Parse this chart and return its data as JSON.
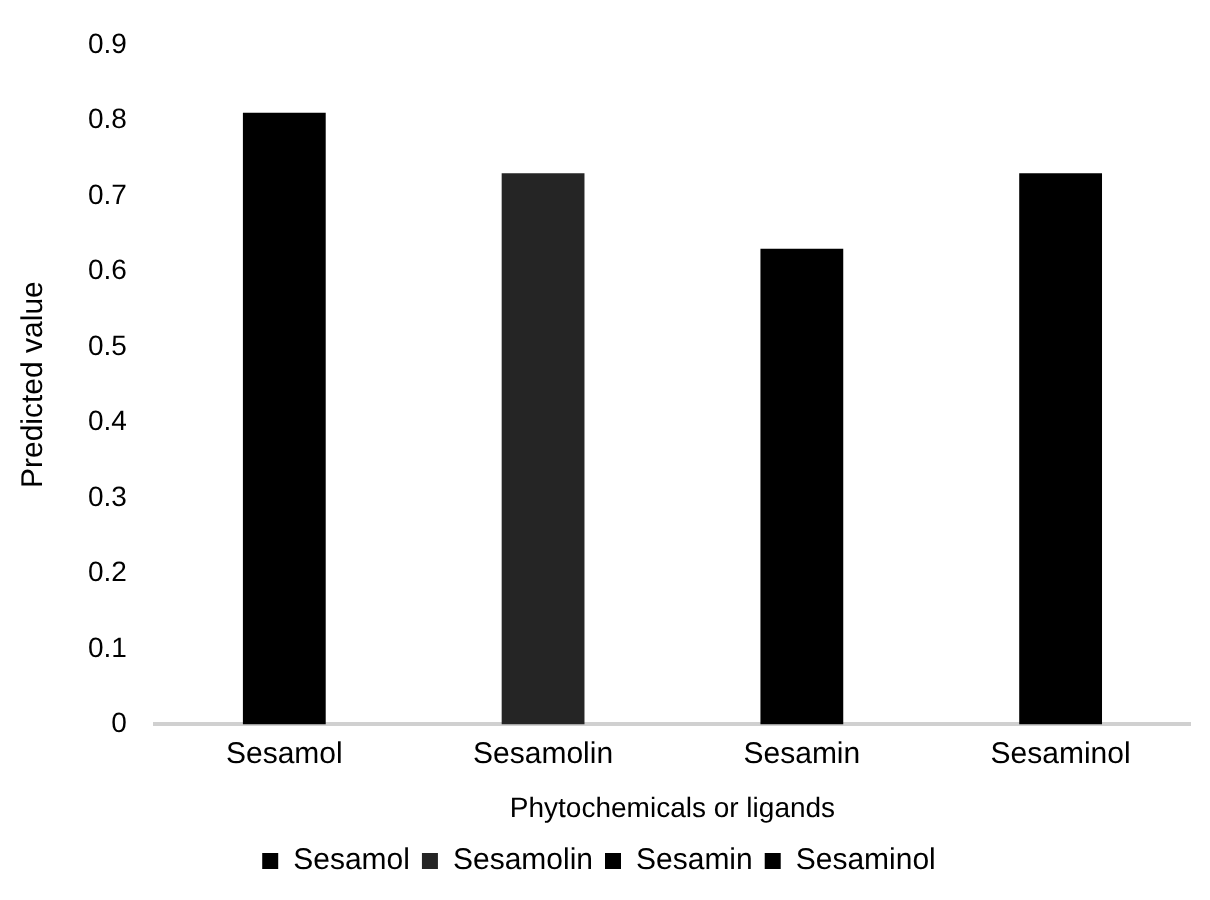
{
  "chart_data": {
    "type": "bar",
    "xlabel": "Phytochemicals or ligands",
    "ylabel": "Predicted value",
    "categories": [
      "Sesamol",
      "Sesamolin",
      "Sesamin",
      "Sesaminol"
    ],
    "series": [
      {
        "name": "Sesamol",
        "color": "#000000",
        "values": [
          0.81,
          null,
          null,
          null
        ]
      },
      {
        "name": "Sesamolin",
        "color": "#252525",
        "values": [
          null,
          0.73,
          null,
          null
        ]
      },
      {
        "name": "Sesamin",
        "color": "#000000",
        "values": [
          null,
          null,
          0.63,
          null
        ]
      },
      {
        "name": "Sesaminol",
        "color": "#000000",
        "values": [
          null,
          null,
          null,
          0.73
        ]
      }
    ],
    "ylim": [
      0,
      0.9
    ],
    "yticks": [
      0,
      0.1,
      0.2,
      0.3,
      0.4,
      0.5,
      0.6,
      0.7,
      0.8,
      0.9
    ],
    "grid": false,
    "legend": "bottom"
  }
}
